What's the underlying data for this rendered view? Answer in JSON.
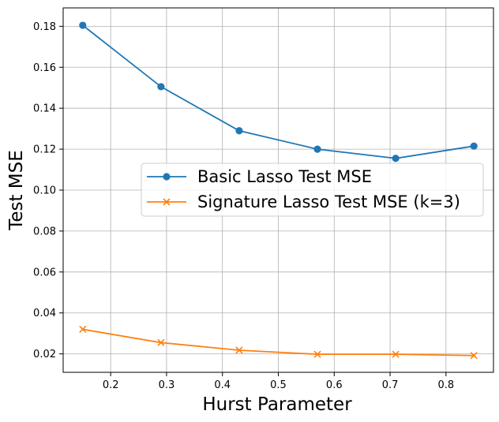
{
  "chart_data": {
    "type": "line",
    "xlabel": "Hurst Parameter",
    "ylabel": "Test MSE",
    "xlim": [
      0.115,
      0.885
    ],
    "ylim": [
      0.011,
      0.189
    ],
    "xticks": [
      "0.2",
      "0.3",
      "0.4",
      "0.5",
      "0.6",
      "0.7",
      "0.8"
    ],
    "yticks": [
      "0.02",
      "0.04",
      "0.06",
      "0.08",
      "0.10",
      "0.12",
      "0.14",
      "0.16",
      "0.18"
    ],
    "grid": true,
    "legend_position": "center-right",
    "series": [
      {
        "name": "Basic Lasso Test MSE",
        "marker": "circle",
        "color": "#1f77b4",
        "x": [
          0.15,
          0.29,
          0.43,
          0.57,
          0.71,
          0.85
        ],
        "y": [
          0.1805,
          0.1505,
          0.129,
          0.12,
          0.1155,
          0.1215
        ]
      },
      {
        "name": "Signature Lasso Test MSE (k=3)",
        "marker": "x",
        "color": "#ff7f0e",
        "x": [
          0.15,
          0.29,
          0.43,
          0.57,
          0.71,
          0.85
        ],
        "y": [
          0.032,
          0.0255,
          0.0218,
          0.0198,
          0.0198,
          0.0192
        ]
      }
    ]
  }
}
